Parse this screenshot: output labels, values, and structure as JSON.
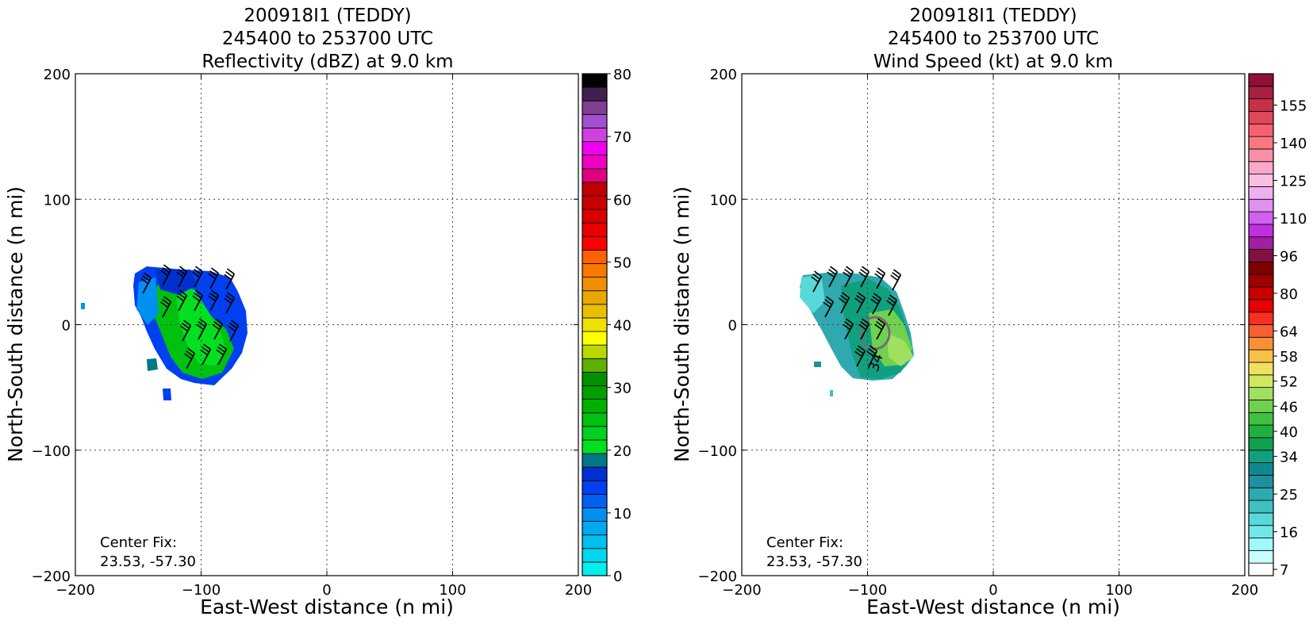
{
  "chart_data": [
    {
      "type": "heatmap",
      "title_lines": [
        "200918I1 (TEDDY)",
        "245400 to 253700 UTC",
        "Reflectivity (dBZ) at 9.0 km"
      ],
      "xlabel": "East-West distance (n mi)",
      "ylabel": "North-South distance (n mi)",
      "xlim": [
        -200,
        200
      ],
      "ylim": [
        -200,
        200
      ],
      "x_ticks": [
        "−200",
        "−100",
        "0",
        "100",
        "200"
      ],
      "y_ticks": [
        "200",
        "100",
        "0",
        "−100",
        "−200"
      ],
      "grid": true,
      "annotation": [
        "Center Fix:",
        "23.53, -57.30"
      ],
      "colorbar": {
        "min": 0,
        "max": 80,
        "step": 2.5,
        "labels": [
          "0",
          "10",
          "20",
          "30",
          "40",
          "50",
          "60",
          "70",
          "80"
        ],
        "colors": [
          "#00f0f0",
          "#00d8ee",
          "#00c0ee",
          "#00a8f0",
          "#0090f0",
          "#0060f0",
          "#0040f0",
          "#0030d0",
          "#007888",
          "#00e020",
          "#00d020",
          "#00c010",
          "#00b000",
          "#00a000",
          "#009000",
          "#60b000",
          "#b8d800",
          "#ffff00",
          "#f0e000",
          "#e8c000",
          "#e8a800",
          "#f09000",
          "#f87800",
          "#ff6000",
          "#ff0000",
          "#e80000",
          "#d80000",
          "#c80000",
          "#c00000",
          "#e00080",
          "#f000c0",
          "#f000f0",
          "#d040e0",
          "#a050d0",
          "#804090",
          "#402050",
          "#000000"
        ]
      },
      "wind_barbs": "present"
    },
    {
      "type": "heatmap",
      "title_lines": [
        "200918I1 (TEDDY)",
        "245400 to 253700 UTC",
        "Wind Speed (kt) at 9.0 km"
      ],
      "xlabel": "East-West distance (n mi)",
      "ylabel": "North-South distance (n mi)",
      "xlim": [
        -200,
        200
      ],
      "ylim": [
        -200,
        200
      ],
      "x_ticks": [
        "−200",
        "−100",
        "0",
        "100",
        "200"
      ],
      "y_ticks": [
        "200",
        "100",
        "0",
        "−100",
        "−200"
      ],
      "grid": true,
      "annotation": [
        "Center Fix:",
        "23.53, -57.30"
      ],
      "contour_label": "34",
      "colorbar": {
        "labels": [
          "7",
          "16",
          "25",
          "34",
          "40",
          "46",
          "52",
          "58",
          "64",
          "80",
          "96",
          "110",
          "125",
          "140",
          "155"
        ],
        "label_bin_index": [
          0,
          3,
          6,
          9,
          11,
          13,
          15,
          17,
          19,
          22,
          25,
          28,
          31,
          34,
          37
        ],
        "colors": [
          "#ffffff",
          "#c8ffff",
          "#a0f8f8",
          "#70e8e8",
          "#58d8d8",
          "#40c0c0",
          "#30a8b0",
          "#2090a0",
          "#108890",
          "#10a080",
          "#10a050",
          "#20b040",
          "#40c040",
          "#70d050",
          "#a0e060",
          "#d0e860",
          "#f0e060",
          "#f8c048",
          "#f89038",
          "#f86030",
          "#f83020",
          "#e80000",
          "#c80000",
          "#a00000",
          "#800000",
          "#801040",
          "#a020a0",
          "#c030e0",
          "#d060f0",
          "#e090f0",
          "#f0b0f0",
          "#f8c0e0",
          "#f8a8c8",
          "#f890a8",
          "#f87880",
          "#f86070",
          "#e04858",
          "#c83048",
          "#a82040",
          "#901038"
        ]
      },
      "wind_barbs": "present"
    }
  ]
}
